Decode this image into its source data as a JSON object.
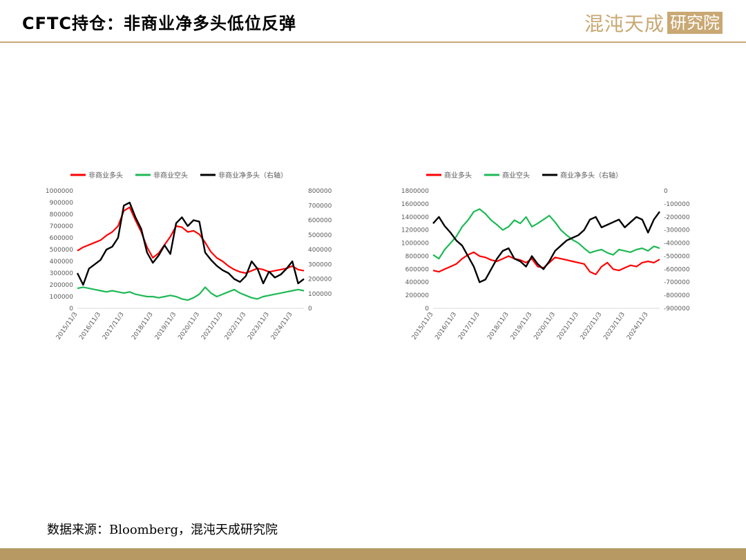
{
  "header": {
    "title": "CFTC持仓：非商业净多头低位反弹",
    "logo_text": "混沌天成",
    "logo_box_text": "研究院"
  },
  "footer": {
    "source": "数据来源：Bloomberg，混沌天成研究院"
  },
  "colors": {
    "gold": "#c9a873",
    "red": "#ff0000",
    "green": "#1db954",
    "black": "#000000"
  },
  "chart_data": [
    {
      "type": "line",
      "title": "",
      "x": [
        "2015/11/3",
        "2016/2/3",
        "2016/5/3",
        "2016/8/3",
        "2016/11/3",
        "2017/2/3",
        "2017/5/3",
        "2017/8/3",
        "2017/11/3",
        "2017/12/15",
        "2018/2/3",
        "2018/5/3",
        "2018/8/3",
        "2018/11/3",
        "2019/2/3",
        "2019/5/3",
        "2019/8/3",
        "2019/11/3",
        "2020/2/3",
        "2020/5/3",
        "2020/8/3",
        "2020/11/3",
        "2021/2/3",
        "2021/5/3",
        "2021/8/3",
        "2021/11/3",
        "2022/2/3",
        "2022/5/3",
        "2022/8/3",
        "2022/11/3",
        "2023/2/3",
        "2023/5/3",
        "2023/8/3",
        "2023/11/3",
        "2024/2/3",
        "2024/5/3",
        "2024/8/3",
        "2024/11/3",
        "2025/1/3",
        "2025/3/3"
      ],
      "x_ticks": [
        "2015/11/3",
        "2016/11/3",
        "2017/11/3",
        "2018/11/3",
        "2019/11/3",
        "2020/11/3",
        "2021/11/3",
        "2022/11/3",
        "2023/11/3",
        "2024/11/3"
      ],
      "y_left": {
        "ylim": [
          0,
          1000000
        ],
        "ticks": [
          "0",
          "100000",
          "200000",
          "300000",
          "400000",
          "500000",
          "600000",
          "700000",
          "800000",
          "900000",
          "1000000"
        ]
      },
      "y_right": {
        "ylim": [
          0,
          800000
        ],
        "ticks": [
          "0",
          "100000",
          "200000",
          "300000",
          "400000",
          "500000",
          "600000",
          "700000",
          "800000"
        ]
      },
      "series": [
        {
          "name": "非商业多头",
          "axis": "left",
          "color": "#ff0000",
          "values": [
            490000,
            520000,
            540000,
            560000,
            580000,
            620000,
            650000,
            700000,
            830000,
            860000,
            750000,
            650000,
            520000,
            430000,
            470000,
            540000,
            610000,
            700000,
            690000,
            650000,
            660000,
            630000,
            560000,
            480000,
            430000,
            400000,
            360000,
            330000,
            310000,
            300000,
            320000,
            340000,
            330000,
            310000,
            320000,
            330000,
            340000,
            360000,
            330000,
            320000
          ]
        },
        {
          "name": "非商业空头",
          "axis": "left",
          "color": "#1db954",
          "values": [
            170000,
            180000,
            170000,
            160000,
            150000,
            140000,
            150000,
            140000,
            130000,
            140000,
            120000,
            110000,
            100000,
            100000,
            90000,
            100000,
            110000,
            100000,
            80000,
            70000,
            90000,
            120000,
            180000,
            130000,
            100000,
            120000,
            140000,
            160000,
            130000,
            110000,
            90000,
            80000,
            100000,
            110000,
            120000,
            130000,
            140000,
            150000,
            160000,
            150000
          ]
        },
        {
          "name": "非商业净多头（右轴）",
          "axis": "right",
          "color": "#000000",
          "values": [
            240000,
            160000,
            270000,
            300000,
            330000,
            400000,
            420000,
            480000,
            700000,
            720000,
            620000,
            540000,
            380000,
            310000,
            360000,
            430000,
            370000,
            580000,
            620000,
            560000,
            600000,
            590000,
            380000,
            330000,
            290000,
            260000,
            240000,
            200000,
            180000,
            220000,
            320000,
            270000,
            170000,
            250000,
            210000,
            230000,
            270000,
            320000,
            170000,
            200000
          ]
        }
      ],
      "legend_position": "top"
    },
    {
      "type": "line",
      "title": "",
      "x": [
        "2015/11/3",
        "2016/2/3",
        "2016/5/3",
        "2016/8/3",
        "2016/11/3",
        "2017/2/3",
        "2017/5/3",
        "2017/8/3",
        "2017/11/3",
        "2017/12/15",
        "2018/2/3",
        "2018/5/3",
        "2018/8/3",
        "2018/11/3",
        "2019/2/3",
        "2019/5/3",
        "2019/8/3",
        "2019/11/3",
        "2020/2/3",
        "2020/5/3",
        "2020/8/3",
        "2020/11/3",
        "2021/2/3",
        "2021/5/3",
        "2021/8/3",
        "2021/11/3",
        "2022/2/3",
        "2022/5/3",
        "2022/8/3",
        "2022/11/3",
        "2023/2/3",
        "2023/5/3",
        "2023/8/3",
        "2023/11/3",
        "2024/2/3",
        "2024/5/3",
        "2024/8/3",
        "2024/11/3",
        "2025/1/3",
        "2025/3/3"
      ],
      "x_ticks": [
        "2015/11/3",
        "2016/11/3",
        "2017/11/3",
        "2018/11/3",
        "2019/11/3",
        "2020/11/3",
        "2021/11/3",
        "2022/11/3",
        "2023/11/3",
        "2024/11/3"
      ],
      "y_left": {
        "ylim": [
          0,
          1800000
        ],
        "ticks": [
          "0",
          "200000",
          "400000",
          "600000",
          "800000",
          "1000000",
          "1200000",
          "1400000",
          "1600000",
          "1800000"
        ]
      },
      "y_right": {
        "ylim": [
          -900000,
          0
        ],
        "ticks": [
          "-900000",
          "-800000",
          "-700000",
          "-600000",
          "-500000",
          "-400000",
          "-300000",
          "-200000",
          "-100000",
          "0"
        ]
      },
      "series": [
        {
          "name": "商业多头",
          "axis": "left",
          "color": "#ff0000",
          "values": [
            580000,
            560000,
            600000,
            640000,
            680000,
            760000,
            820000,
            860000,
            800000,
            780000,
            740000,
            720000,
            760000,
            800000,
            760000,
            740000,
            700000,
            760000,
            640000,
            620000,
            700000,
            780000,
            760000,
            740000,
            720000,
            700000,
            680000,
            560000,
            520000,
            640000,
            700000,
            600000,
            580000,
            620000,
            660000,
            640000,
            700000,
            720000,
            700000,
            750000
          ]
        },
        {
          "name": "商业空头",
          "axis": "left",
          "color": "#1db954",
          "values": [
            820000,
            760000,
            900000,
            1000000,
            1100000,
            1250000,
            1350000,
            1480000,
            1520000,
            1450000,
            1350000,
            1280000,
            1200000,
            1250000,
            1350000,
            1300000,
            1400000,
            1250000,
            1300000,
            1360000,
            1420000,
            1320000,
            1200000,
            1120000,
            1050000,
            1000000,
            920000,
            850000,
            880000,
            900000,
            850000,
            820000,
            900000,
            880000,
            860000,
            900000,
            920000,
            880000,
            950000,
            920000
          ]
        },
        {
          "name": "商业净多头（右轴）",
          "axis": "right",
          "color": "#000000",
          "values": [
            -250000,
            -200000,
            -270000,
            -320000,
            -380000,
            -420000,
            -500000,
            -580000,
            -700000,
            -680000,
            -600000,
            -520000,
            -460000,
            -440000,
            -520000,
            -540000,
            -580000,
            -500000,
            -560000,
            -600000,
            -540000,
            -460000,
            -420000,
            -380000,
            -360000,
            -340000,
            -300000,
            -220000,
            -200000,
            -280000,
            -260000,
            -240000,
            -220000,
            -280000,
            -240000,
            -200000,
            -220000,
            -320000,
            -220000,
            -160000
          ]
        }
      ],
      "legend_position": "top"
    }
  ]
}
